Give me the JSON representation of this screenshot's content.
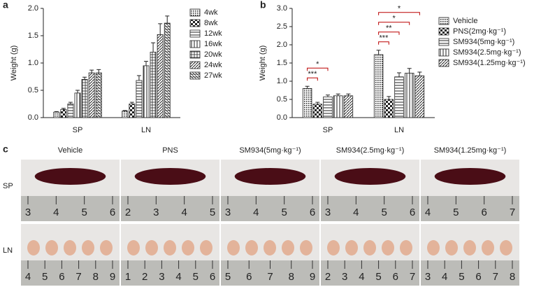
{
  "chart_data": [
    {
      "type": "bar",
      "panel_label": "a",
      "ylabel": "Weight (g)",
      "categories": [
        "SP",
        "LN"
      ],
      "ylim": [
        0,
        2.0
      ],
      "yticks": [
        {
          "value": 0,
          "label": "0.0"
        },
        {
          "value": 0.5,
          "label": "0.5"
        },
        {
          "value": 1.0,
          "label": "1.0"
        },
        {
          "value": 1.5,
          "label": "1.5"
        },
        {
          "value": 2.0,
          "label": "2.0"
        }
      ],
      "series": [
        {
          "name": "4wk",
          "color": "#222",
          "hatch": "dense-dots",
          "values": [
            0.1,
            0.12
          ],
          "errors": [
            0.01,
            0.01
          ]
        },
        {
          "name": "8wk",
          "color": "#222",
          "hatch": "checker",
          "values": [
            0.15,
            0.25
          ],
          "errors": [
            0.02,
            0.03
          ]
        },
        {
          "name": "12wk",
          "color": "#222",
          "hatch": "hlines",
          "values": [
            0.25,
            0.68
          ],
          "errors": [
            0.03,
            0.09
          ]
        },
        {
          "name": "16wk",
          "color": "#222",
          "hatch": "vlines",
          "values": [
            0.45,
            0.95
          ],
          "errors": [
            0.05,
            0.08
          ]
        },
        {
          "name": "20wk",
          "color": "#222",
          "hatch": "grid",
          "values": [
            0.7,
            1.2
          ],
          "errors": [
            0.04,
            0.17
          ]
        },
        {
          "name": "24wk",
          "color": "#222",
          "hatch": "diag",
          "values": [
            0.82,
            1.52
          ],
          "errors": [
            0.05,
            0.2
          ]
        },
        {
          "name": "27wk",
          "color": "#222",
          "hatch": "rdiag",
          "values": [
            0.82,
            1.73
          ],
          "errors": [
            0.06,
            0.13
          ]
        }
      ]
    },
    {
      "type": "bar",
      "panel_label": "b",
      "ylabel": "Weight (g)",
      "categories": [
        "SP",
        "LN"
      ],
      "ylim": [
        0,
        3.0
      ],
      "yticks": [
        {
          "value": 0,
          "label": "0.0"
        },
        {
          "value": 0.5,
          "label": "0.5"
        },
        {
          "value": 1.0,
          "label": "1.0"
        },
        {
          "value": 1.5,
          "label": "1.5"
        },
        {
          "value": 2.0,
          "label": "2.0"
        },
        {
          "value": 2.5,
          "label": "2.5"
        },
        {
          "value": 3.0,
          "label": "3.0"
        }
      ],
      "series": [
        {
          "name": "Vehicle",
          "color": "#222",
          "hatch": "dense-dots",
          "values": [
            0.8,
            1.73
          ],
          "errors": [
            0.06,
            0.12
          ]
        },
        {
          "name": "PNS(2mg·kg⁻¹)",
          "color": "#222",
          "hatch": "checker",
          "values": [
            0.37,
            0.5
          ],
          "errors": [
            0.05,
            0.08
          ]
        },
        {
          "name": "SM934(5mg·kg⁻¹)",
          "color": "#222",
          "hatch": "hlines",
          "values": [
            0.57,
            1.12
          ],
          "errors": [
            0.05,
            0.11
          ]
        },
        {
          "name": "SM934(2.5mg·kg⁻¹)",
          "color": "#222",
          "hatch": "vlines",
          "values": [
            0.6,
            1.22
          ],
          "errors": [
            0.05,
            0.13
          ]
        },
        {
          "name": "SM934(1.25mg·kg⁻¹)",
          "color": "#222",
          "hatch": "diag",
          "values": [
            0.6,
            1.15
          ],
          "errors": [
            0.05,
            0.1
          ]
        }
      ],
      "annotations": [
        {
          "text": "***",
          "category": 0,
          "from": 0,
          "to": 1
        },
        {
          "text": "*",
          "category": 0,
          "from": 0,
          "to": 2
        },
        {
          "text": "***",
          "category": 1,
          "from": 0,
          "to": 1
        },
        {
          "text": "**",
          "category": 1,
          "from": 0,
          "to": 2
        },
        {
          "text": "*",
          "category": 1,
          "from": 0,
          "to": 3
        },
        {
          "text": "*",
          "category": 1,
          "from": 0,
          "to": 4
        }
      ]
    }
  ],
  "panel_c": {
    "panel_label": "c",
    "columns": [
      "Vehicle",
      "PNS",
      "SM934(5mg·kg⁻¹)",
      "SM934(2.5mg·kg⁻¹)",
      "SM934(1.25mg·kg⁻¹)"
    ],
    "rows": [
      {
        "label": "SP",
        "rulers": [
          [
            3,
            4,
            5,
            6
          ],
          [
            2,
            3,
            4,
            5
          ],
          [
            3,
            4,
            5,
            6
          ],
          [
            3,
            4,
            5,
            6
          ],
          [
            4,
            5,
            6,
            7
          ]
        ]
      },
      {
        "label": "LN",
        "rulers": [
          [
            4,
            5,
            6,
            7,
            8,
            9
          ],
          [
            1,
            2,
            3,
            4,
            5,
            6
          ],
          [
            5,
            6,
            7,
            8,
            9
          ],
          [
            2,
            3,
            4,
            5,
            6,
            7
          ],
          [
            3,
            4,
            5,
            6,
            7,
            8
          ]
        ]
      }
    ]
  }
}
